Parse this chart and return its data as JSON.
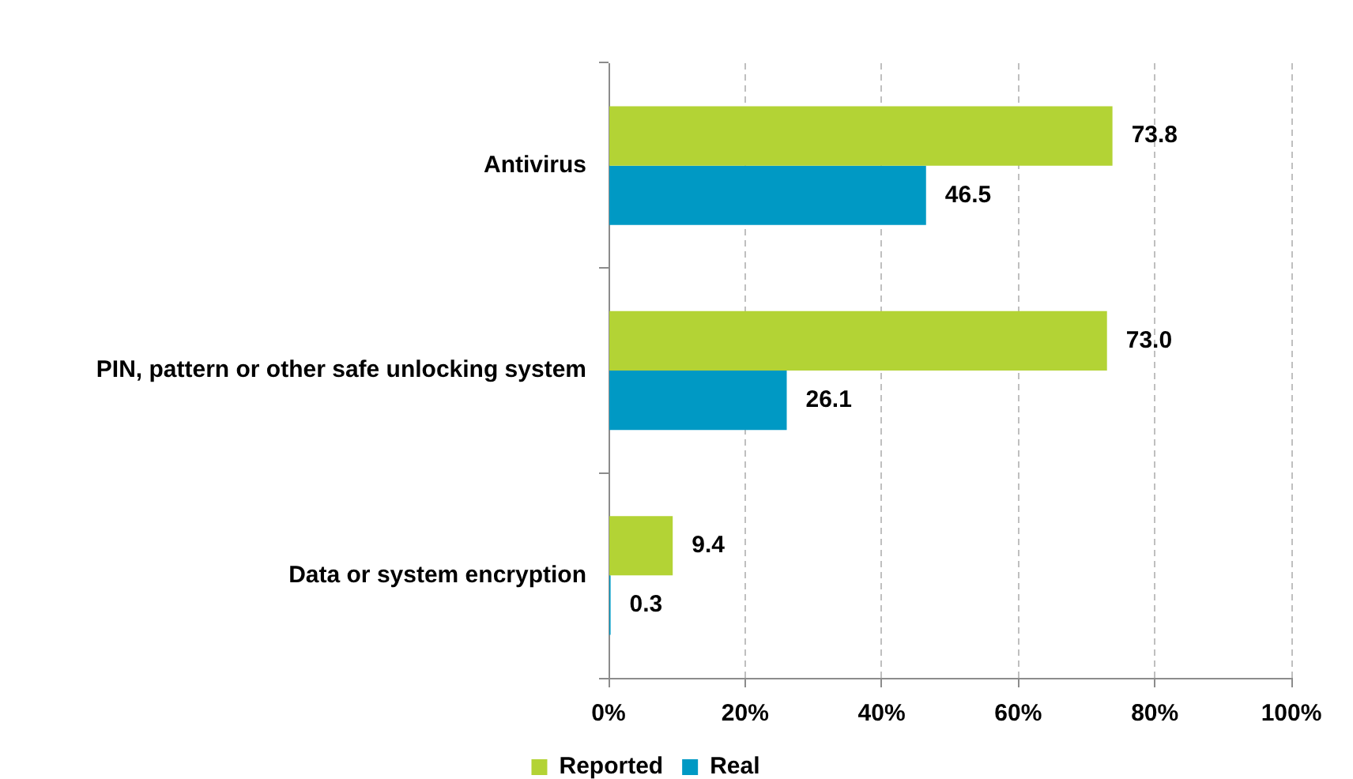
{
  "chart_data": {
    "type": "bar",
    "orientation": "horizontal",
    "categories": [
      "Antivirus",
      "PIN, pattern or other safe unlocking system",
      "Data or system encryption"
    ],
    "series": [
      {
        "name": "Reported",
        "color": "#b3d335",
        "values": [
          73.8,
          73.0,
          9.4
        ],
        "value_labels": [
          "73.8",
          "73.0",
          "9.4"
        ]
      },
      {
        "name": "Real",
        "color": "#0099c4",
        "values": [
          46.5,
          26.1,
          0.3
        ],
        "value_labels": [
          "46.5",
          "26.1",
          "0.3"
        ]
      }
    ],
    "xlim": [
      0,
      100
    ],
    "xticks": [
      {
        "value": 0,
        "label": "0%"
      },
      {
        "value": 20,
        "label": "20%"
      },
      {
        "value": 40,
        "label": "40%"
      },
      {
        "value": 60,
        "label": "60%"
      },
      {
        "value": 80,
        "label": "80%"
      },
      {
        "value": 100,
        "label": "100%"
      }
    ],
    "grid": "x",
    "legend": "bottom"
  }
}
